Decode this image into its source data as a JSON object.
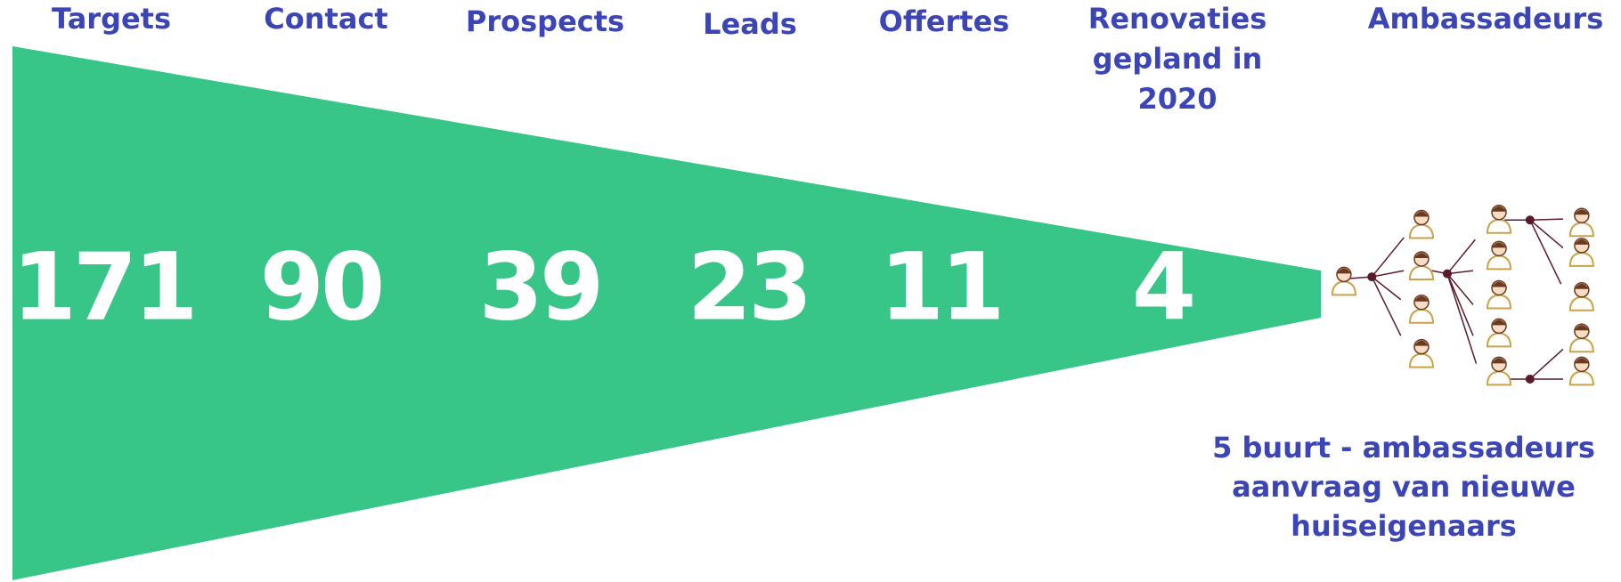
{
  "stages": [
    {
      "label": "Targets",
      "value": "171"
    },
    {
      "label": "Contact",
      "value": "90"
    },
    {
      "label": "Prospects",
      "value": "39"
    },
    {
      "label": "Leads",
      "value": "23"
    },
    {
      "label": "Offertes",
      "value": "11"
    },
    {
      "label": [
        "Renovaties",
        "gepland in",
        "2020"
      ],
      "value": "4"
    },
    {
      "label": "Ambassadeurs"
    }
  ],
  "note": [
    "5 buurt - ambassadeurs",
    "aanvraag van nieuwe",
    "huiseigenaars"
  ]
}
